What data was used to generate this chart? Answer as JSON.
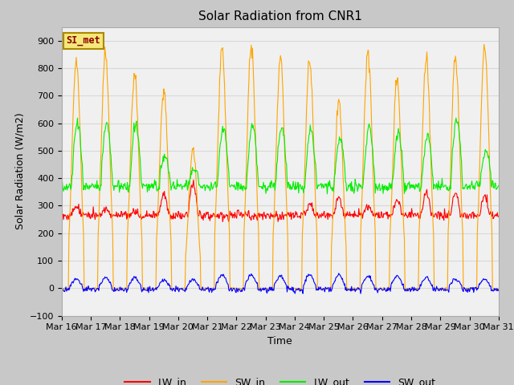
{
  "title": "Solar Radiation from CNR1",
  "xlabel": "Time",
  "ylabel": "Solar Radiation (W/m2)",
  "ylim": [
    -100,
    950
  ],
  "yticks": [
    -100,
    0,
    100,
    200,
    300,
    400,
    500,
    600,
    700,
    800,
    900
  ],
  "x_tick_labels": [
    "Mar 16",
    "Mar 17",
    "Mar 18",
    "Mar 19",
    "Mar 20",
    "Mar 21",
    "Mar 22",
    "Mar 23",
    "Mar 24",
    "Mar 25",
    "Mar 26",
    "Mar 27",
    "Mar 28",
    "Mar 29",
    "Mar 30",
    "Mar 31"
  ],
  "legend_labels": [
    "LW_in",
    "SW_in",
    "LW_out",
    "SW_out"
  ],
  "line_colors": {
    "LW_in": "#ff0000",
    "SW_in": "#ffa500",
    "LW_out": "#00ee00",
    "SW_out": "#0000ff"
  },
  "station_label": "SI_met",
  "station_label_color": "#8b0000",
  "fig_bg_color": "#c8c8c8",
  "plot_bg_color": "#f0f0f0",
  "grid_color": "#d8d8d8",
  "title_fontsize": 11,
  "axis_label_fontsize": 9,
  "tick_fontsize": 8,
  "sw_peaks": [
    835,
    850,
    780,
    730,
    510,
    870,
    880,
    835,
    830,
    685,
    870,
    760,
    840,
    845,
    880
  ],
  "lw_out_day_peaks": [
    600,
    595,
    595,
    480,
    430,
    580,
    590,
    580,
    575,
    545,
    580,
    560,
    555,
    610,
    500
  ],
  "lw_in_base": 265,
  "lw_in_day_peaks": [
    295,
    290,
    280,
    340,
    380,
    265,
    260,
    255,
    300,
    330,
    300,
    320,
    350,
    345,
    340
  ],
  "lw_out_base": 370,
  "sw_out_day_peaks": [
    35,
    40,
    40,
    30,
    30,
    50,
    50,
    45,
    50,
    50,
    45,
    45,
    40,
    35,
    35
  ]
}
